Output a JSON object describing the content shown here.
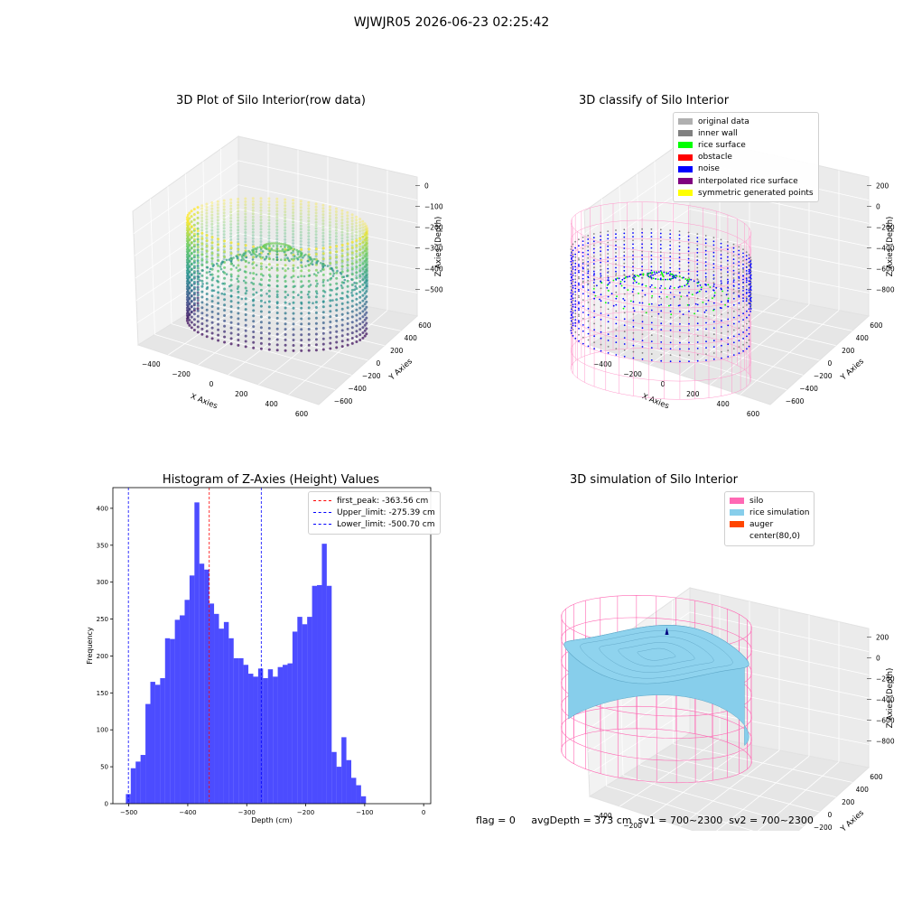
{
  "suptitle": "WJWJR05 2026-06-23 02:25:42",
  "status_bar": {
    "flag": "flag = 0",
    "avg_depth": "avgDepth = 373 cm",
    "sv1": "sv1 = 700~2300",
    "sv2": "sv2 = 700~2300"
  },
  "chart_data": [
    {
      "type": "scatter",
      "projection": "3d",
      "title": "3D Plot of Silo Interior(row data)",
      "xlabel": "X Axies",
      "ylabel": "Y Axies",
      "zlabel": "Z Axies (Depth)",
      "xticks": [
        "−400",
        "−200",
        "0",
        "200",
        "400",
        "600"
      ],
      "yticks": [
        "−600",
        "−400",
        "−200",
        "0",
        "200",
        "400",
        "600"
      ],
      "zticks": [
        "0",
        "−100",
        "−200",
        "−300",
        "−400",
        "−500"
      ],
      "xlim": [
        -500,
        650
      ],
      "ylim": [
        -650,
        650
      ],
      "zlim": [
        -520,
        10
      ],
      "colormap": "viridis",
      "colors": [
        "#440154",
        "#3b528b",
        "#21918c",
        "#5ec962",
        "#fde725"
      ],
      "description_points": "ring of scatter points with walls and conical rice surface colored by depth"
    },
    {
      "type": "scatter",
      "projection": "3d",
      "title": "3D classify of Silo Interior",
      "xlabel": "X Axies",
      "ylabel": "Y Axies",
      "zlabel": "Z Axies (Depth)",
      "xticks": [
        "−400",
        "−200",
        "0",
        "200",
        "400",
        "600"
      ],
      "yticks": [
        "−600",
        "−400",
        "−200",
        "0",
        "200",
        "400",
        "600"
      ],
      "zticks": [
        "200",
        "0",
        "−200",
        "−400",
        "−600",
        "−800"
      ],
      "xlim": [
        -500,
        650
      ],
      "ylim": [
        -650,
        650
      ],
      "zlim": [
        -850,
        250
      ],
      "legend_position": "top-right",
      "legend": [
        {
          "label": "original data",
          "color": "#b0b0b0"
        },
        {
          "label": "inner wall",
          "color": "#808080"
        },
        {
          "label": "rice surface",
          "color": "#00ff00"
        },
        {
          "label": "obstacle",
          "color": "#ff0000"
        },
        {
          "label": "noise",
          "color": "#0000ff"
        },
        {
          "label": "interpolated rice surface",
          "color": "#800080"
        },
        {
          "label": "symmetric generated points",
          "color": "#ffff00"
        }
      ],
      "wireframe_color": "#ff99cc"
    },
    {
      "type": "bar",
      "title": "Histogram of Z-Axies (Height) Values",
      "xlabel": "Depth (cm)",
      "ylabel": "Frequency",
      "xlim": [
        -527,
        12
      ],
      "ylim": [
        0,
        428
      ],
      "xticks": [
        -500,
        -400,
        -300,
        -200,
        -100,
        0
      ],
      "yticks": [
        0,
        50,
        100,
        150,
        200,
        250,
        300,
        350,
        400
      ],
      "bar_color": "#0000ff",
      "bar_alpha": 0.7,
      "bin_start": -505,
      "bin_width": 8.31,
      "values": [
        13,
        48,
        57,
        66,
        135,
        165,
        161,
        170,
        224,
        223,
        249,
        255,
        276,
        309,
        408,
        325,
        317,
        271,
        257,
        237,
        246,
        224,
        197,
        197,
        188,
        176,
        172,
        183,
        170,
        182,
        172,
        185,
        188,
        190,
        233,
        253,
        243,
        253,
        295,
        296,
        352,
        295,
        70,
        50,
        90,
        59,
        35,
        25,
        10
      ],
      "vlines": [
        {
          "label": "first_peak: -363.56 cm",
          "x": -363.56,
          "color": "#ff0000"
        },
        {
          "label": "Upper_limit: -275.39 cm",
          "x": -275.39,
          "color": "#0000ff"
        },
        {
          "label": "Lower_limit: -500.70 cm",
          "x": -500.7,
          "color": "#0000ff"
        }
      ],
      "legend_position": "top-right"
    },
    {
      "type": "surface",
      "projection": "3d",
      "title": "3D simulation of Silo Interior",
      "xlabel": "X Axies",
      "ylabel": "Y Axies",
      "zlabel": "Z Axies (Depth)",
      "xticks": [
        "−400",
        "−200",
        "0",
        "200",
        "400",
        "600"
      ],
      "yticks": [
        "−600",
        "−400",
        "−200",
        "0",
        "200",
        "400",
        "600"
      ],
      "zticks": [
        "200",
        "0",
        "−200",
        "−400",
        "−600",
        "−800"
      ],
      "legend_position": "top-right",
      "legend": [
        {
          "label": "silo",
          "color": "#ff69b4"
        },
        {
          "label": "rice simulation",
          "color": "#87ceeb"
        },
        {
          "label": "auger",
          "color": "#ff4500"
        },
        {
          "label": "center(80,0)",
          "color": ""
        }
      ]
    }
  ]
}
